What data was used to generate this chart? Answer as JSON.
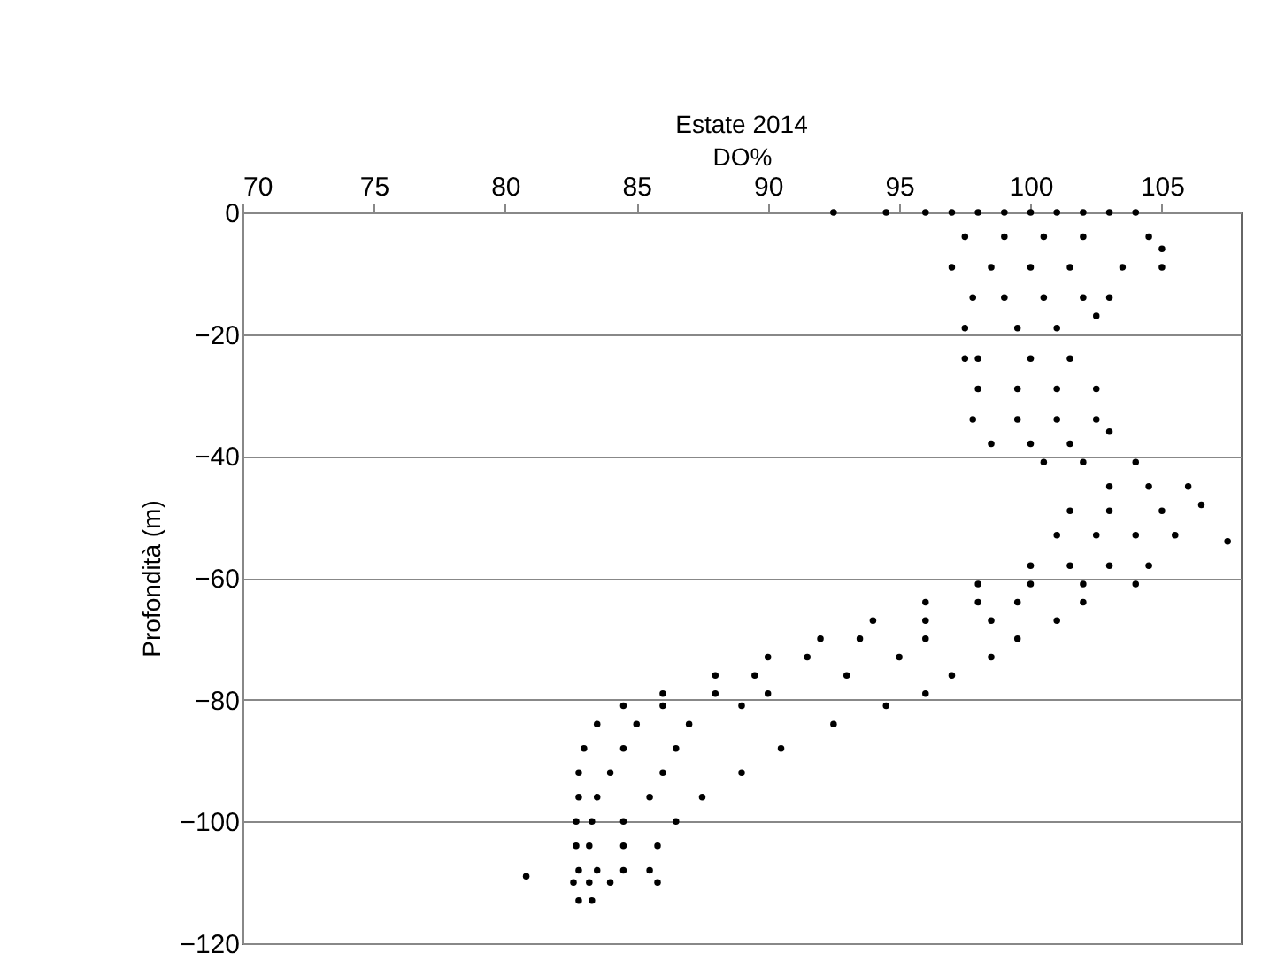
{
  "chart_data": {
    "type": "scatter",
    "title": "Estate 2014",
    "xlabel": "DO%",
    "ylabel": "Profondità (m)",
    "x": [
      92.5,
      94.5,
      96,
      97,
      98,
      99,
      100,
      101,
      102,
      103,
      104,
      97.5,
      99,
      100.5,
      102,
      104.5,
      105,
      97,
      98.5,
      100,
      101.5,
      103.5,
      105,
      97.8,
      99,
      100.5,
      102,
      103,
      97.5,
      99.5,
      101,
      102.5,
      98,
      100,
      101.5,
      97.5,
      98,
      99.5,
      101,
      102.5,
      97.8,
      99.5,
      101,
      102.5,
      98.5,
      100,
      101.5,
      103,
      100.5,
      102,
      104,
      103,
      104.5,
      106,
      101.5,
      103,
      105,
      106.5,
      101,
      102.5,
      104,
      105.5,
      107.5,
      100,
      101.5,
      103,
      104.5,
      98,
      100,
      102,
      104,
      96,
      98,
      99.5,
      102,
      94,
      96,
      98.5,
      101,
      92,
      93.5,
      96,
      99.5,
      90,
      91.5,
      95,
      98.5,
      88,
      89.5,
      93,
      97,
      86,
      88,
      90,
      96,
      84.5,
      86,
      89,
      94.5,
      83.5,
      85,
      87,
      92.5,
      83,
      84.5,
      86.5,
      90.5,
      82.8,
      84,
      86,
      89,
      82.8,
      83.5,
      85.5,
      87.5,
      82.7,
      83.3,
      84.5,
      86.5,
      82.7,
      83.2,
      84.5,
      85.8,
      82.8,
      83.5,
      84.5,
      85.5,
      80.8,
      82.6,
      83.2,
      84,
      85.8,
      82.8,
      83.3
    ],
    "values": [
      0,
      0,
      0,
      0,
      0,
      0,
      0,
      0,
      0,
      0,
      0,
      -4,
      -4,
      -4,
      -4,
      -4,
      -6,
      -9,
      -9,
      -9,
      -9,
      -9,
      -9,
      -14,
      -14,
      -14,
      -14,
      -14,
      -19,
      -19,
      -19,
      -17,
      -24,
      -24,
      -24,
      -24,
      -29,
      -29,
      -29,
      -29,
      -34,
      -34,
      -34,
      -34,
      -38,
      -38,
      -38,
      -36,
      -41,
      -41,
      -41,
      -45,
      -45,
      -45,
      -49,
      -49,
      -49,
      -48,
      -53,
      -53,
      -53,
      -53,
      -54,
      -58,
      -58,
      -58,
      -58,
      -61,
      -61,
      -61,
      -61,
      -64,
      -64,
      -64,
      -64,
      -67,
      -67,
      -67,
      -67,
      -70,
      -70,
      -70,
      -70,
      -73,
      -73,
      -73,
      -73,
      -76,
      -76,
      -76,
      -76,
      -79,
      -79,
      -79,
      -79,
      -81,
      -81,
      -81,
      -81,
      -84,
      -84,
      -84,
      -84,
      -88,
      -88,
      -88,
      -88,
      -92,
      -92,
      -92,
      -92,
      -96,
      -96,
      -96,
      -96,
      -100,
      -100,
      -100,
      -100,
      -104,
      -104,
      -104,
      -104,
      -108,
      -108,
      -108,
      -108,
      -109,
      -110,
      -110,
      -110,
      -110,
      -113,
      -113
    ],
    "color": "#000000",
    "marker": "circle",
    "grid": "y",
    "xlim": [
      70,
      108
    ],
    "xticks": [
      70,
      75,
      80,
      85,
      90,
      95,
      100,
      105
    ],
    "ylim": [
      -120,
      0
    ],
    "yticks": [
      -120,
      -100,
      -80,
      -60,
      -40,
      -20,
      0
    ]
  }
}
